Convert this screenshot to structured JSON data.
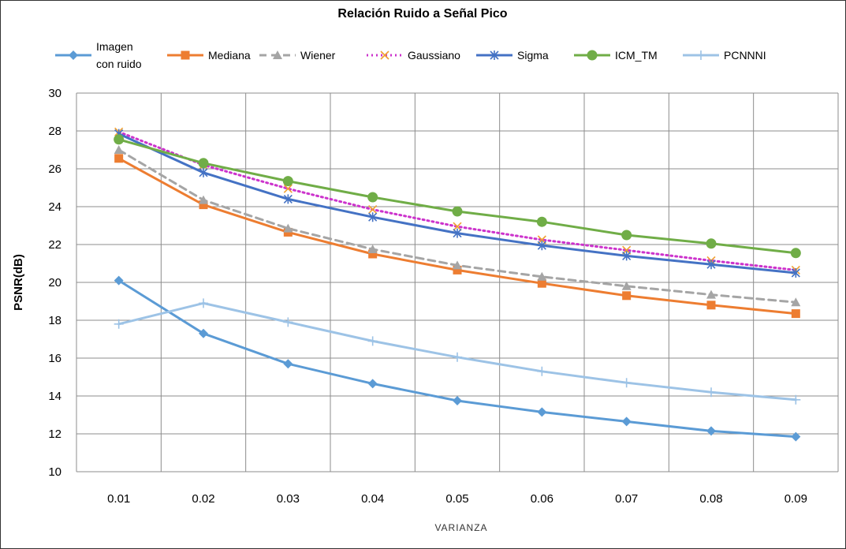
{
  "chart_data": {
    "type": "line",
    "title": "Relación Ruido a Señal Pico",
    "xlabel": "VARIANZA",
    "ylabel": "PSNR(dB)",
    "x": [
      "0.01",
      "0.02",
      "0.03",
      "0.04",
      "0.05",
      "0.06",
      "0.07",
      "0.08",
      "0.09"
    ],
    "yticks": [
      "10",
      "12",
      "14",
      "16",
      "18",
      "20",
      "22",
      "24",
      "26",
      "28",
      "30"
    ],
    "ylim": [
      10,
      30
    ],
    "grid": true,
    "legend_position": "top",
    "series": [
      {
        "name": "Imagen\ncon ruido",
        "color": "#5b9bd5",
        "marker": "diamond",
        "dash": "solid",
        "values": [
          20.1,
          17.3,
          15.7,
          14.65,
          13.75,
          13.15,
          12.65,
          12.15,
          11.85
        ]
      },
      {
        "name": "Mediana",
        "color": "#ed7d31",
        "marker": "square",
        "dash": "solid",
        "values": [
          26.55,
          24.1,
          22.65,
          21.5,
          20.65,
          19.95,
          19.3,
          18.8,
          18.35
        ]
      },
      {
        "name": "Wiener",
        "color": "#a5a5a5",
        "marker": "triangle",
        "dash": "dashed",
        "values": [
          27.0,
          24.35,
          22.85,
          21.75,
          20.9,
          20.3,
          19.8,
          19.35,
          18.95
        ]
      },
      {
        "name": "Gaussiano",
        "color": "#cc33cc",
        "marker": "x",
        "markerColor": "#f0a030",
        "dash": "dotted",
        "values": [
          27.95,
          26.2,
          24.95,
          23.85,
          22.95,
          22.25,
          21.7,
          21.15,
          20.65
        ]
      },
      {
        "name": "Sigma",
        "color": "#4472c4",
        "marker": "star",
        "dash": "solid",
        "values": [
          27.85,
          25.8,
          24.4,
          23.45,
          22.6,
          21.95,
          21.4,
          20.95,
          20.5
        ]
      },
      {
        "name": "ICM_TM",
        "color": "#70ad47",
        "marker": "circle",
        "dash": "solid",
        "values": [
          27.55,
          26.3,
          25.35,
          24.5,
          23.75,
          23.2,
          22.5,
          22.05,
          21.55
        ]
      },
      {
        "name": "PCNNNI",
        "color": "#9dc3e6",
        "marker": "plus",
        "dash": "solid",
        "values": [
          17.8,
          18.9,
          17.9,
          16.9,
          16.05,
          15.3,
          14.7,
          14.2,
          13.8
        ]
      }
    ]
  }
}
